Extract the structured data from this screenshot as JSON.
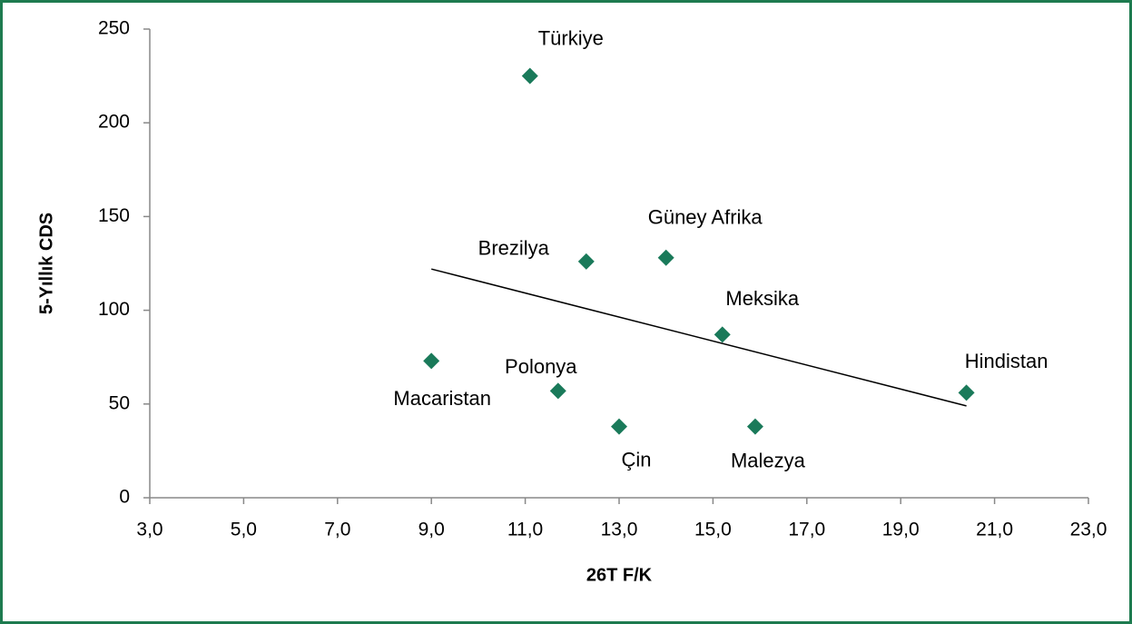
{
  "chart_data": {
    "type": "scatter",
    "xlabel": "26T F/K",
    "ylabel": "5-Yıllık CDS",
    "labels": [
      "Türkiye",
      "Brezilya",
      "Güney Afrika",
      "Meksika",
      "Hindistan",
      "Macaristan",
      "Polonya",
      "Çin",
      "Malezya"
    ],
    "x": [
      11.1,
      12.3,
      14.0,
      15.2,
      20.4,
      9.0,
      11.7,
      13.0,
      15.9
    ],
    "y": [
      225,
      126,
      128,
      87,
      56,
      73,
      57,
      38,
      38
    ],
    "color": "#1a7a5a",
    "trendline": {
      "x": [
        9.0,
        20.4
      ],
      "y": [
        122,
        49
      ],
      "color": "#000000"
    },
    "xlim": [
      3,
      23
    ],
    "xticks": [
      {
        "value": 3,
        "label": "3,0"
      },
      {
        "value": 5,
        "label": "5,0"
      },
      {
        "value": 7,
        "label": "7,0"
      },
      {
        "value": 9,
        "label": "9,0"
      },
      {
        "value": 11,
        "label": "11,0"
      },
      {
        "value": 13,
        "label": "13,0"
      },
      {
        "value": 15,
        "label": "15,0"
      },
      {
        "value": 17,
        "label": "17,0"
      },
      {
        "value": 19,
        "label": "19,0"
      },
      {
        "value": 21,
        "label": "21,0"
      },
      {
        "value": 23,
        "label": "23,0"
      }
    ],
    "ylim": [
      0,
      250
    ],
    "yticks": [
      0,
      50,
      100,
      150,
      200,
      250
    ]
  }
}
